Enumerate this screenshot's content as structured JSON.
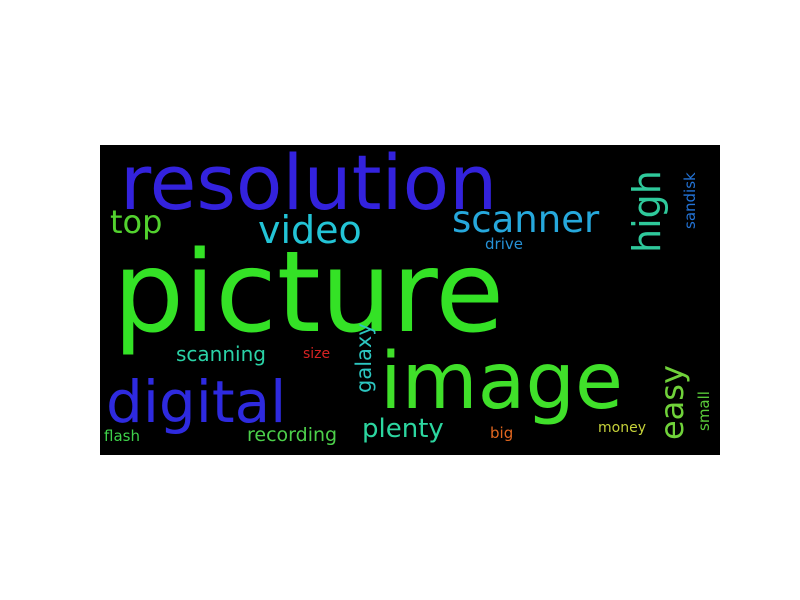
{
  "words": [
    {
      "key": "picture",
      "text": "picture",
      "color": "#34e226"
    },
    {
      "key": "resolution",
      "text": "resolution",
      "color": "#3322dd"
    },
    {
      "key": "image",
      "text": "image",
      "color": "#40e02a"
    },
    {
      "key": "digital",
      "text": "digital",
      "color": "#2e2adf"
    },
    {
      "key": "scanner",
      "text": "scanner",
      "color": "#26a8dc"
    },
    {
      "key": "video",
      "text": "video",
      "color": "#23c4d6"
    },
    {
      "key": "high",
      "text": "high",
      "color": "#2fc99b"
    },
    {
      "key": "top",
      "text": "top",
      "color": "#52d12e"
    },
    {
      "key": "easy",
      "text": "easy",
      "color": "#70d23a"
    },
    {
      "key": "galaxy",
      "text": "galaxy",
      "color": "#2cc6c0"
    },
    {
      "key": "plenty",
      "text": "plenty",
      "color": "#2cd6a0"
    },
    {
      "key": "scanning",
      "text": "scanning",
      "color": "#2ad2a6"
    },
    {
      "key": "recording",
      "text": "recording",
      "color": "#4ccf4a"
    },
    {
      "key": "sandisk",
      "text": "sandisk",
      "color": "#2373d6"
    },
    {
      "key": "drive",
      "text": "drive",
      "color": "#2691d6"
    },
    {
      "key": "size",
      "text": "size",
      "color": "#d62222"
    },
    {
      "key": "flash",
      "text": "flash",
      "color": "#3ed14a"
    },
    {
      "key": "big",
      "text": "big",
      "color": "#e0661f"
    },
    {
      "key": "money",
      "text": "money",
      "color": "#c6d23a"
    },
    {
      "key": "small",
      "text": "small",
      "color": "#5acd3a"
    }
  ]
}
